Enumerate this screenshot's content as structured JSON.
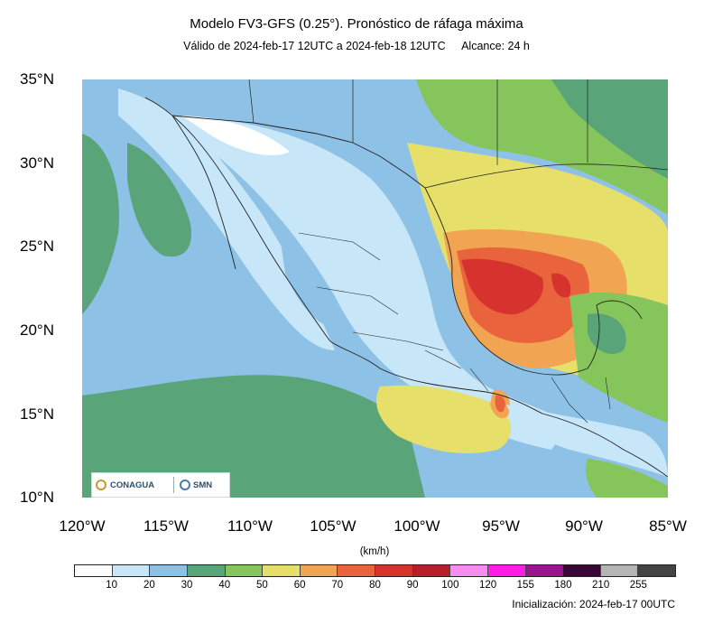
{
  "header": {
    "title": "Modelo FV3-GFS (0.25°). Pronóstico de ráfaga máxima",
    "validity": "Válido de 2024-feb-17 12UTC a 2024-feb-18 12UTC",
    "lead_time": "Alcance: 24 h"
  },
  "map": {
    "lat_labels": [
      "35°N",
      "30°N",
      "25°N",
      "20°N",
      "15°N",
      "10°N"
    ],
    "lon_labels": [
      "120°W",
      "115°W",
      "110°W",
      "105°W",
      "100°W",
      "95°W",
      "90°W",
      "85°W"
    ],
    "extent": {
      "lon_min": -120,
      "lon_max": -85,
      "lat_min": 10,
      "lat_max": 35
    }
  },
  "logos": {
    "left": "CONAGUA",
    "right": "SMN"
  },
  "legend": {
    "unit": "(km/h)",
    "ticks": [
      "10",
      "20",
      "30",
      "40",
      "50",
      "60",
      "70",
      "80",
      "90",
      "100",
      "120",
      "155",
      "180",
      "210",
      "255"
    ],
    "colors": [
      "#ffffff",
      "#c7e6f7",
      "#8ec1e6",
      "#5aa47a",
      "#86c45c",
      "#e6e06a",
      "#f1a552",
      "#e9643c",
      "#d6332e",
      "#b81f2a",
      "#f58cef",
      "#ff1de6",
      "#9a168e",
      "#3a0638",
      "#b5b5b5",
      "#444444"
    ]
  },
  "footer": {
    "initialization": "Inicialización: 2024-feb-17 00UTC"
  }
}
